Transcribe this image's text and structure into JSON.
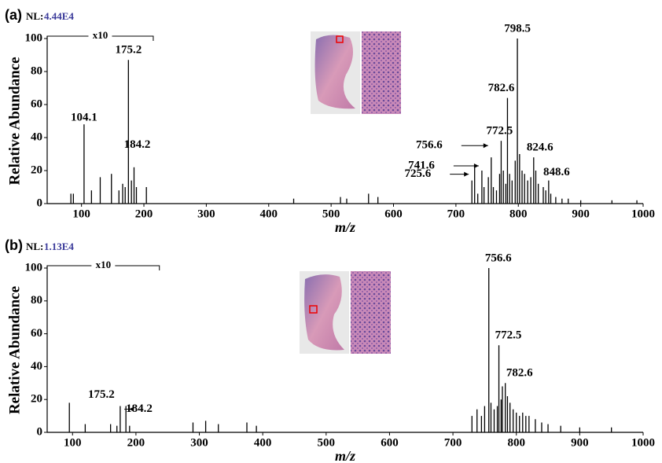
{
  "chart_data": [
    {
      "type": "stem",
      "panel": "(a)",
      "nl_label": "NL:",
      "nl_value": "4.44E4",
      "zoom_label": "x10",
      "zoom_xrange": [
        45,
        215
      ],
      "xlabel": "m/z",
      "ylabel": "Relative Abundance",
      "color": "#000000",
      "xlim": [
        45,
        1000
      ],
      "ylim": [
        0,
        100
      ],
      "xticks": [
        100,
        200,
        300,
        400,
        500,
        600,
        700,
        800,
        900,
        1000
      ],
      "yticks": [
        0,
        20,
        40,
        60,
        80,
        100
      ],
      "x": [
        83,
        87,
        116,
        130,
        148,
        160,
        166,
        170,
        180,
        188,
        204,
        440,
        515,
        525,
        560,
        575,
        730,
        735,
        745,
        752,
        760,
        765,
        770,
        776,
        780,
        786,
        790,
        795,
        802,
        806,
        810,
        815,
        820,
        828,
        832,
        840,
        844,
        852,
        860,
        870,
        880,
        900,
        950,
        990
      ],
      "values": [
        6,
        6,
        8,
        16,
        18,
        8,
        12,
        10,
        14,
        10,
        10,
        3,
        4,
        3,
        6,
        4,
        22,
        6,
        10,
        16,
        10,
        8,
        18,
        20,
        12,
        18,
        14,
        26,
        30,
        20,
        18,
        14,
        16,
        20,
        12,
        10,
        8,
        6,
        4,
        3,
        3,
        2,
        2,
        2
      ],
      "annotated": {
        "x": [
          104.1,
          175.2,
          184.2,
          725.6,
          741.6,
          756.6,
          772.5,
          782.6,
          798.5,
          824.6,
          848.6
        ],
        "values": [
          48,
          87,
          22,
          14,
          20,
          28,
          38,
          64,
          100,
          28,
          14
        ]
      }
    },
    {
      "type": "stem",
      "panel": "(b)",
      "nl_label": "NL:",
      "nl_value": "1.13E4",
      "zoom_label": "x10",
      "zoom_xrange": [
        60,
        237
      ],
      "xlabel": "m/z",
      "ylabel": "Relative Abundance",
      "color": "#000000",
      "xlim": [
        60,
        1000
      ],
      "ylim": [
        0,
        100
      ],
      "xticks": [
        100,
        200,
        300,
        400,
        500,
        600,
        700,
        800,
        900,
        1000
      ],
      "yticks": [
        0,
        20,
        40,
        60,
        80,
        100
      ],
      "x": [
        95,
        120,
        160,
        170,
        190,
        290,
        310,
        330,
        375,
        390,
        730,
        738,
        745,
        750,
        760,
        765,
        770,
        776,
        778,
        786,
        790,
        795,
        800,
        805,
        810,
        815,
        820,
        830,
        840,
        850,
        870,
        900,
        950
      ],
      "values": [
        18,
        5,
        5,
        4,
        4,
        6,
        7,
        5,
        6,
        4,
        10,
        14,
        10,
        16,
        18,
        14,
        16,
        20,
        28,
        22,
        18,
        14,
        12,
        10,
        12,
        10,
        10,
        8,
        6,
        5,
        4,
        3,
        3
      ],
      "annotated": {
        "x": [
          175.2,
          184.2,
          756.6,
          772.5,
          782.6
        ],
        "values": [
          16,
          16,
          100,
          53,
          30
        ]
      }
    }
  ]
}
